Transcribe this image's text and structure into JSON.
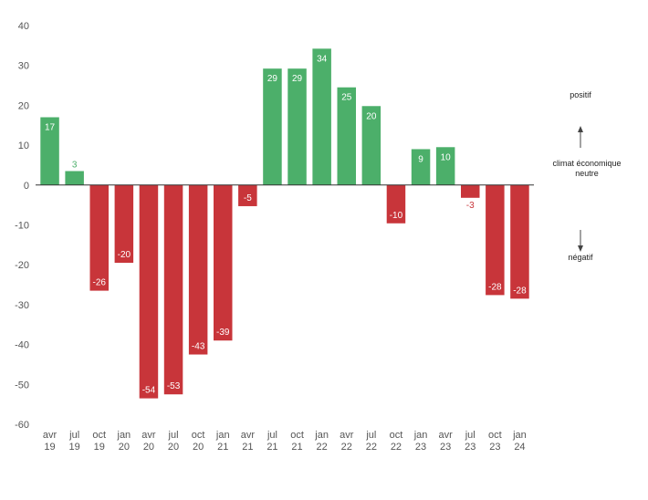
{
  "chart_data": {
    "type": "bar",
    "categories": [
      [
        "avr",
        "19"
      ],
      [
        "jul",
        "19"
      ],
      [
        "oct",
        "19"
      ],
      [
        "jan",
        "20"
      ],
      [
        "avr",
        "20"
      ],
      [
        "jul",
        "20"
      ],
      [
        "oct",
        "20"
      ],
      [
        "jan",
        "21"
      ],
      [
        "avr",
        "21"
      ],
      [
        "jul",
        "21"
      ],
      [
        "oct",
        "21"
      ],
      [
        "jan",
        "22"
      ],
      [
        "avr",
        "22"
      ],
      [
        "jul",
        "22"
      ],
      [
        "oct",
        "22"
      ],
      [
        "jan",
        "23"
      ],
      [
        "avr",
        "23"
      ],
      [
        "jul",
        "23"
      ],
      [
        "oct",
        "23"
      ],
      [
        "jan",
        "24"
      ]
    ],
    "values": [
      17,
      3.5,
      -26.5,
      -19.5,
      -53.5,
      -52.5,
      -42.5,
      -39,
      -5.3,
      29.2,
      29.2,
      34.2,
      24.5,
      19.8,
      -9.6,
      9,
      9.5,
      -3.2,
      -27.6,
      -28.5
    ],
    "labels": [
      "17",
      "3",
      "-26",
      "-20",
      "-54",
      "-53",
      "-43",
      "-39",
      "-5",
      "29",
      "29",
      "34",
      "25",
      "20",
      "-10",
      "9",
      "10",
      "-3",
      "-28",
      "-28"
    ],
    "ylim": [
      -60,
      40
    ],
    "yticks": [
      40,
      30,
      20,
      10,
      0,
      -10,
      -20,
      -30,
      -40,
      -50,
      -60
    ],
    "colors": {
      "positive": "#4caf6a",
      "negative": "#c8353a",
      "axis": "#333333"
    },
    "legend": {
      "positive": "positif",
      "neutral_line1": "climat économique",
      "neutral_line2": "neutre",
      "negative": "négatif"
    }
  }
}
